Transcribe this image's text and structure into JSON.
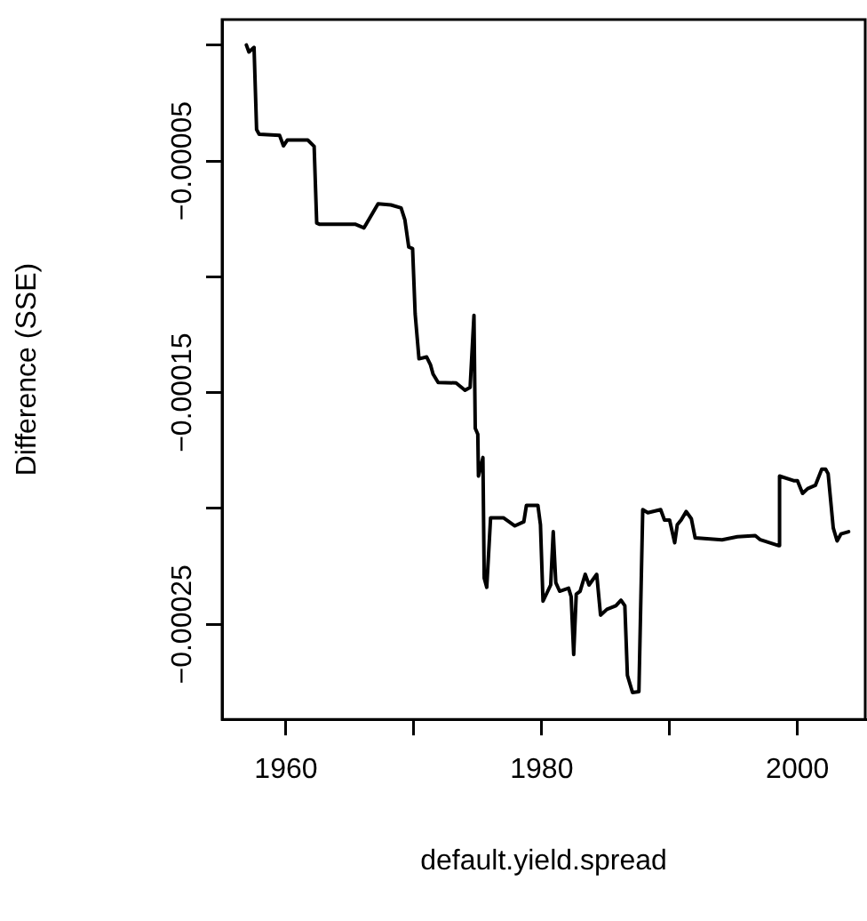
{
  "chart_data": {
    "type": "line",
    "xlabel": "default.yield.spread",
    "ylabel": "Difference (SSE)",
    "marker": "none",
    "line_style": "solid",
    "xlim": [
      1955,
      2005.3
    ],
    "ylim": [
      -0.000291,
      1.1e-05
    ],
    "xticks": [
      1960,
      {
        "value": 1970,
        "label": null
      },
      1980,
      {
        "value": 1990,
        "label": null
      },
      2000
    ],
    "yticks": [
      {
        "value": 0,
        "label": null
      },
      {
        "value": -5e-05,
        "label": "−0.00005"
      },
      {
        "value": -0.0001,
        "label": null
      },
      {
        "value": -0.00015,
        "label": "−0.00015"
      },
      {
        "value": -0.0002,
        "label": null
      },
      {
        "value": -0.00025,
        "label": "−0.00025"
      }
    ],
    "series": [
      {
        "color": "#000000",
        "x": [
          1956.9,
          1957.1,
          1957.5,
          1957.7,
          1957.9,
          1959.5,
          1959.8,
          1960.1,
          1961.7,
          1962.2,
          1962.4,
          1962.6,
          1965.4,
          1966.1,
          1966.6,
          1967.2,
          1968.2,
          1969.0,
          1969.3,
          1969.6,
          1969.9,
          1970.1,
          1970.4,
          1971.0,
          1971.3,
          1971.5,
          1971.9,
          1973.3,
          1974.0,
          1974.4,
          1974.7,
          1974.8,
          1975.0,
          1975.05,
          1975.4,
          1975.5,
          1975.7,
          1976.0,
          1977.0,
          1977.9,
          1978.6,
          1978.8,
          1979.7,
          1979.9,
          1980.1,
          1980.7,
          1980.9,
          1981.1,
          1981.4,
          1982.1,
          1982.3,
          1982.5,
          1982.7,
          1983.0,
          1983.4,
          1983.7,
          1984.3,
          1984.6,
          1985.1,
          1985.8,
          1986.2,
          1986.5,
          1986.7,
          1987.1,
          1987.6,
          1987.9,
          1988.3,
          1989.3,
          1989.6,
          1990.0,
          1990.4,
          1990.6,
          1990.9,
          1991.3,
          1991.7,
          1992.0,
          1994.1,
          1995.3,
          1996.7,
          1997.1,
          1998.5,
          1998.6,
          1999.7,
          2000.0,
          2000.4,
          2000.8,
          2001.4,
          2001.9,
          2002.2,
          2002.4,
          2002.8,
          2003.1,
          2003.4,
          2004.0
        ],
        "values": [
          0,
          -3e-06,
          -1e-06,
          -3.65e-05,
          -3.85e-05,
          -3.9e-05,
          -4.35e-05,
          -4.1e-05,
          -4.1e-05,
          -4.37e-05,
          -7.68e-05,
          -7.73e-05,
          -7.73e-05,
          -7.89e-05,
          -7.42e-05,
          -6.85e-05,
          -6.9e-05,
          -7.03e-05,
          -7.55e-05,
          -8.72e-05,
          -8.78e-05,
          -0.000116,
          -0.0001354,
          -0.0001346,
          -0.000138,
          -0.000142,
          -0.0001456,
          -0.0001458,
          -0.000149,
          -0.0001477,
          -0.0001167,
          -0.0001654,
          -0.000168,
          -0.000186,
          -0.000178,
          -0.00023,
          -0.000234,
          -0.000204,
          -0.000204,
          -0.0002075,
          -0.0002057,
          -0.0001987,
          -0.0001987,
          -0.000207,
          -0.00024,
          -0.000233,
          -0.00021,
          -0.000232,
          -0.0002357,
          -0.0002344,
          -0.000238,
          -0.000263,
          -0.000237,
          -0.0002357,
          -0.0002284,
          -0.000233,
          -0.0002284,
          -0.000246,
          -0.0002435,
          -0.000242,
          -0.0002396,
          -0.000242,
          -0.000272,
          -0.0002794,
          -0.000279,
          -0.0002005,
          -0.0002018,
          -0.0002005,
          -0.000205,
          -0.000205,
          -0.0002148,
          -0.000207,
          -0.000205,
          -0.0002013,
          -0.0002044,
          -0.0002127,
          -0.0002135,
          -0.0002122,
          -0.0002117,
          -0.0002135,
          -0.000216,
          -0.000186,
          -0.000188,
          -0.000188,
          -0.0001935,
          -0.0001914,
          -0.00019,
          -0.000183,
          -0.000183,
          -0.000185,
          -0.0002084,
          -0.000214,
          -0.000211,
          -0.00021
        ]
      }
    ]
  }
}
